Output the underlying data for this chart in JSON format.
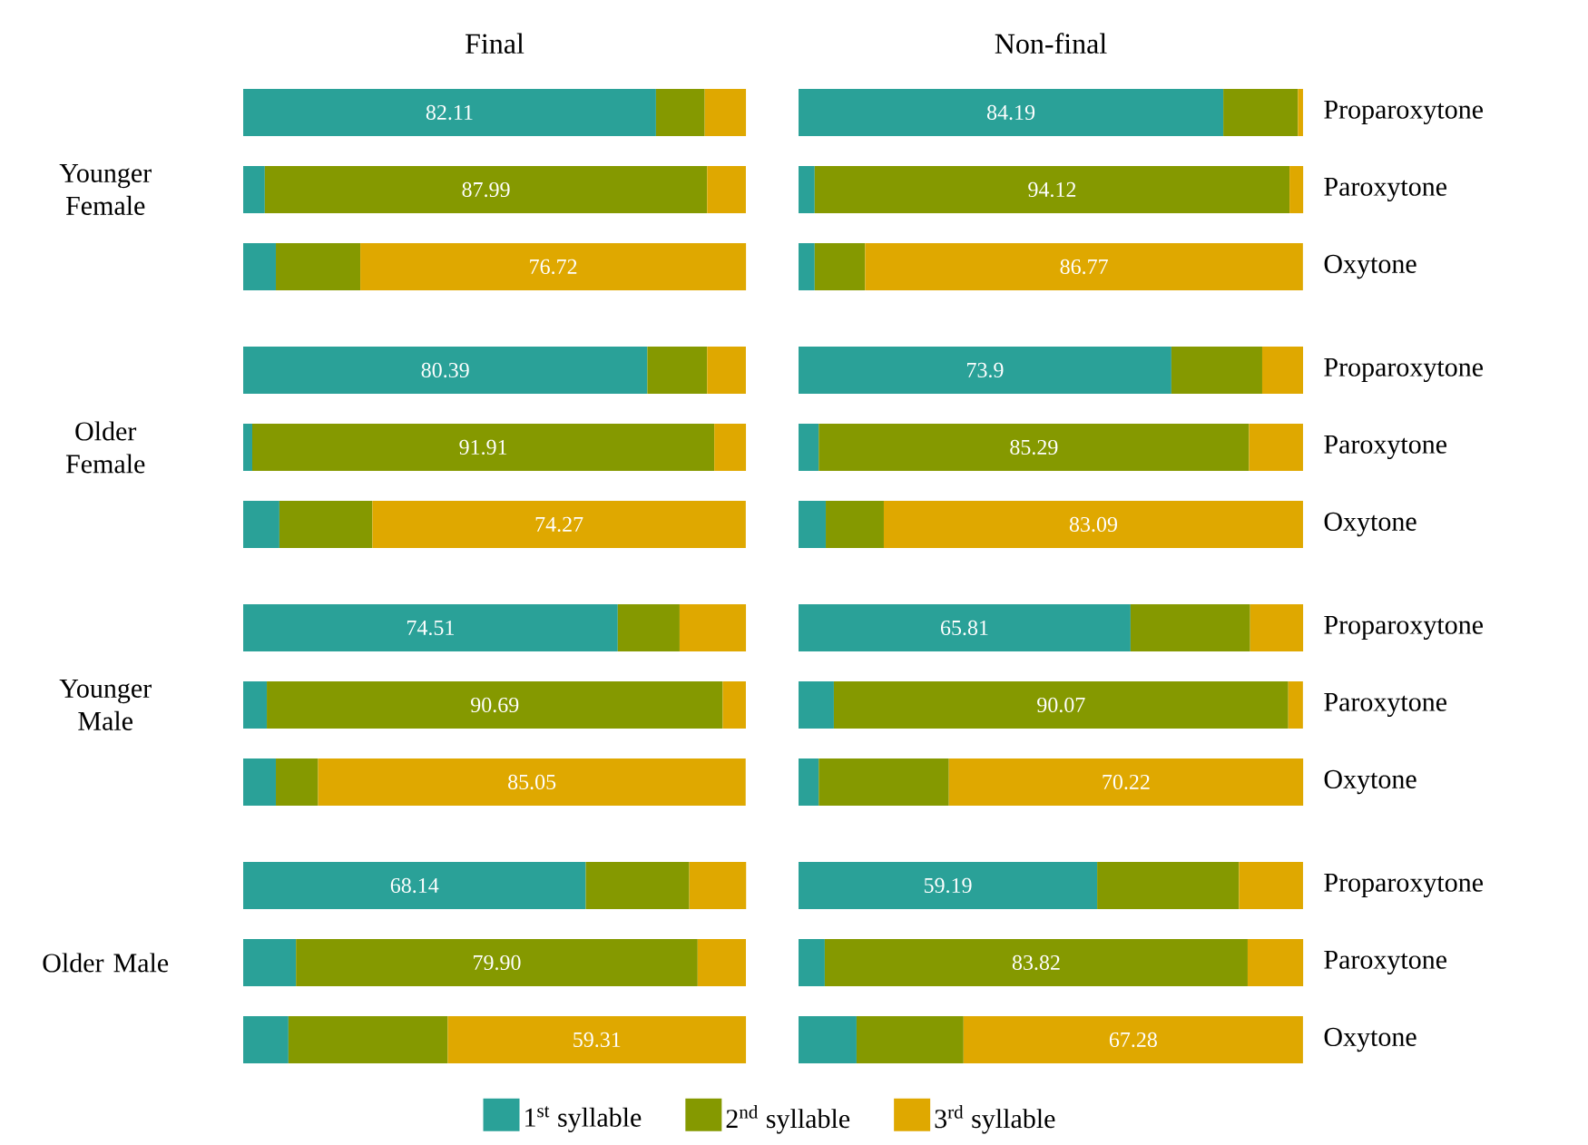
{
  "chart_data": [
    {
      "type": "bar",
      "orientation": "horizontal",
      "stacked": true,
      "xlim": [
        0,
        100
      ],
      "title": "Final",
      "ylabel": "Younger Female",
      "tick_labels": false,
      "categories": [
        null,
        null,
        null
      ],
      "series": [
        {
          "color": "#2aa198",
          "values": [
            82.11,
            4.3,
            6.5
          ],
          "value_labels": [
            "82.11",
            null,
            null
          ]
        },
        {
          "color": "#859900",
          "values": [
            9.7,
            87.99,
            16.8
          ],
          "value_labels": [
            null,
            "87.99",
            null
          ]
        },
        {
          "color": "#dfa800",
          "values": [
            8.2,
            7.7,
            76.72
          ],
          "value_labels": [
            null,
            null,
            "76.72"
          ]
        }
      ]
    },
    {
      "type": "bar",
      "orientation": "horizontal",
      "stacked": true,
      "xlim": [
        0,
        100
      ],
      "title": "Non-final",
      "tick_labels": "y",
      "categories": [
        "Proparoxytone",
        "Paroxytone",
        "Oxytone"
      ],
      "series": [
        {
          "color": "#2aa198",
          "values": [
            84.19,
            3.2,
            3.2
          ],
          "value_labels": [
            "84.19",
            null,
            null
          ]
        },
        {
          "color": "#859900",
          "values": [
            14.8,
            94.12,
            10.0
          ],
          "value_labels": [
            null,
            "94.12",
            null
          ]
        },
        {
          "color": "#dfa800",
          "values": [
            1.0,
            2.7,
            86.77
          ],
          "value_labels": [
            null,
            null,
            "86.77"
          ]
        }
      ]
    },
    {
      "type": "bar",
      "orientation": "horizontal",
      "stacked": true,
      "xlim": [
        0,
        100
      ],
      "ylabel": "Older Female",
      "tick_labels": false,
      "categories": [
        null,
        null,
        null
      ],
      "series": [
        {
          "color": "#2aa198",
          "values": [
            80.39,
            1.8,
            7.2
          ],
          "value_labels": [
            "80.39",
            null,
            null
          ]
        },
        {
          "color": "#859900",
          "values": [
            11.9,
            91.91,
            18.5
          ],
          "value_labels": [
            null,
            "91.91",
            null
          ]
        },
        {
          "color": "#dfa800",
          "values": [
            7.7,
            6.3,
            74.27
          ],
          "value_labels": [
            null,
            null,
            "74.27"
          ]
        }
      ]
    },
    {
      "type": "bar",
      "orientation": "horizontal",
      "stacked": true,
      "xlim": [
        0,
        100
      ],
      "tick_labels": "y",
      "categories": [
        "Proparoxytone",
        "Paroxytone",
        "Oxytone"
      ],
      "series": [
        {
          "color": "#2aa198",
          "values": [
            73.9,
            4.0,
            5.4
          ],
          "value_labels": [
            "73.9",
            null,
            null
          ]
        },
        {
          "color": "#859900",
          "values": [
            18.0,
            85.29,
            11.5
          ],
          "value_labels": [
            null,
            "85.29",
            null
          ]
        },
        {
          "color": "#dfa800",
          "values": [
            8.1,
            10.7,
            83.09
          ],
          "value_labels": [
            null,
            null,
            "83.09"
          ]
        }
      ]
    },
    {
      "type": "bar",
      "orientation": "horizontal",
      "stacked": true,
      "xlim": [
        0,
        100
      ],
      "ylabel": "Younger Male",
      "tick_labels": false,
      "categories": [
        null,
        null,
        null
      ],
      "series": [
        {
          "color": "#2aa198",
          "values": [
            74.51,
            4.7,
            6.5
          ],
          "value_labels": [
            "74.51",
            null,
            null
          ]
        },
        {
          "color": "#859900",
          "values": [
            12.3,
            90.69,
            8.4
          ],
          "value_labels": [
            null,
            "90.69",
            null
          ]
        },
        {
          "color": "#dfa800",
          "values": [
            13.2,
            4.6,
            85.05
          ],
          "value_labels": [
            null,
            null,
            "85.05"
          ]
        }
      ]
    },
    {
      "type": "bar",
      "orientation": "horizontal",
      "stacked": true,
      "xlim": [
        0,
        100
      ],
      "tick_labels": "y",
      "categories": [
        "Proparoxytone",
        "Paroxytone",
        "Oxytone"
      ],
      "series": [
        {
          "color": "#2aa198",
          "values": [
            65.81,
            7.0,
            4.0
          ],
          "value_labels": [
            "65.81",
            null,
            null
          ]
        },
        {
          "color": "#859900",
          "values": [
            23.7,
            90.07,
            25.8
          ],
          "value_labels": [
            null,
            "90.07",
            null
          ]
        },
        {
          "color": "#dfa800",
          "values": [
            10.5,
            2.9,
            70.22
          ],
          "value_labels": [
            null,
            null,
            "70.22"
          ]
        }
      ]
    },
    {
      "type": "bar",
      "orientation": "horizontal",
      "stacked": true,
      "xlim": [
        0,
        100
      ],
      "ylabel": "Older Male",
      "tick_labels": false,
      "categories": [
        null,
        null,
        null
      ],
      "series": [
        {
          "color": "#2aa198",
          "values": [
            68.14,
            10.5,
            9.0
          ],
          "value_labels": [
            "68.14",
            null,
            null
          ]
        },
        {
          "color": "#859900",
          "values": [
            20.6,
            79.9,
            31.7
          ],
          "value_labels": [
            null,
            "79.90",
            null
          ]
        },
        {
          "color": "#dfa800",
          "values": [
            11.3,
            9.6,
            59.31
          ],
          "value_labels": [
            null,
            null,
            "59.31"
          ]
        }
      ]
    },
    {
      "type": "bar",
      "orientation": "horizontal",
      "stacked": true,
      "xlim": [
        0,
        100
      ],
      "tick_labels": "y",
      "legend": "bottom",
      "categories": [
        "Proparoxytone",
        "Paroxytone",
        "Oxytone"
      ],
      "series": [
        {
          "name": "1$^{st}$ syllable",
          "color": "#2aa198",
          "values": [
            59.19,
            5.2,
            11.5
          ],
          "value_labels": [
            "59.19",
            null,
            null
          ]
        },
        {
          "name": "2$^{nd}$ syllable",
          "color": "#859900",
          "values": [
            28.1,
            83.82,
            21.2
          ],
          "value_labels": [
            null,
            "83.82",
            null
          ]
        },
        {
          "name": "3$^{rd}$ syllable",
          "color": "#dfa800",
          "values": [
            12.7,
            11.0,
            67.28
          ],
          "value_labels": [
            null,
            null,
            "67.28"
          ]
        }
      ]
    }
  ]
}
